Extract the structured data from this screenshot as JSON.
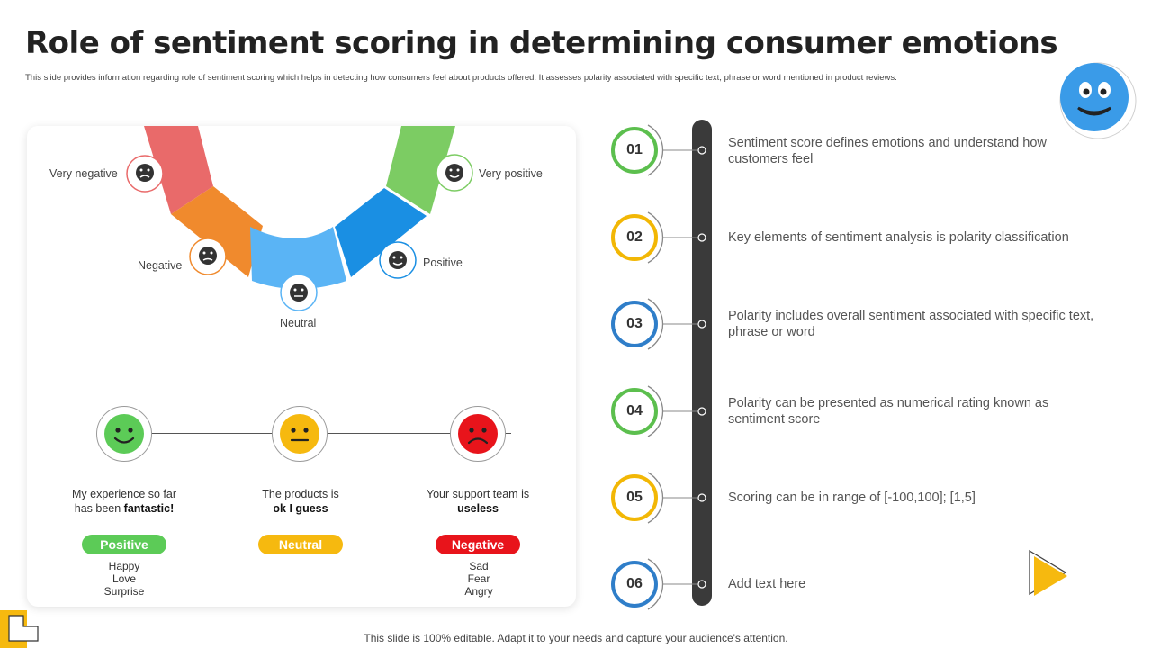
{
  "header": {
    "title": "Role of sentiment scoring in determining consumer emotions",
    "subtitle": "This slide provides information regarding role of sentiment scoring which helps in detecting how consumers feel about products offered. It assesses polarity associated with specific text, phrase or word mentioned in product reviews."
  },
  "scale": {
    "very_negative": "Very negative",
    "negative": "Negative",
    "neutral": "Neutral",
    "positive": "Positive",
    "very_positive": "Very positive",
    "colors": [
      "#e96a6a",
      "#f08a2d",
      "#5ab4f5",
      "#1a8fe3",
      "#7ccc63"
    ]
  },
  "examples": [
    {
      "quote_line1": "My experience  so far",
      "quote_line2_prefix": "has been ",
      "quote_bold": "fantastic!",
      "pill": "Positive",
      "pill_color": "#5ccb57",
      "emotions": [
        "Happy",
        "Love",
        "Surprise"
      ]
    },
    {
      "quote_line1": "The products is",
      "quote_line2_prefix": "",
      "quote_bold": "ok I guess",
      "pill": "Neutral",
      "pill_color": "#f6b90f",
      "emotions": []
    },
    {
      "quote_line1": "Your support team is",
      "quote_line2_prefix": "",
      "quote_bold": "useless",
      "pill": "Negative",
      "pill_color": "#e8141b",
      "emotions": [
        "Sad",
        "Fear",
        "Angry"
      ]
    }
  ],
  "steps": [
    {
      "num": "01",
      "text": "Sentiment score defines emotions and understand how customers feel",
      "color": "#5cbf4e"
    },
    {
      "num": "02",
      "text": "Key elements of sentiment analysis is polarity classification",
      "color": "#f2b705"
    },
    {
      "num": "03",
      "text": "Polarity includes overall sentiment associated with specific text, phrase or word",
      "color": "#2f7ec9"
    },
    {
      "num": "04",
      "text": "Polarity can be presented as numerical rating known as sentiment score",
      "color": "#5cbf4e"
    },
    {
      "num": "05",
      "text": "Scoring can be in range of [-100,100]; [1,5]",
      "color": "#f2b705"
    },
    {
      "num": "06",
      "text": "Add text here",
      "color": "#2f7ec9"
    }
  ],
  "footer": "This slide is 100% editable. Adapt it to your needs and capture your audience's attention."
}
